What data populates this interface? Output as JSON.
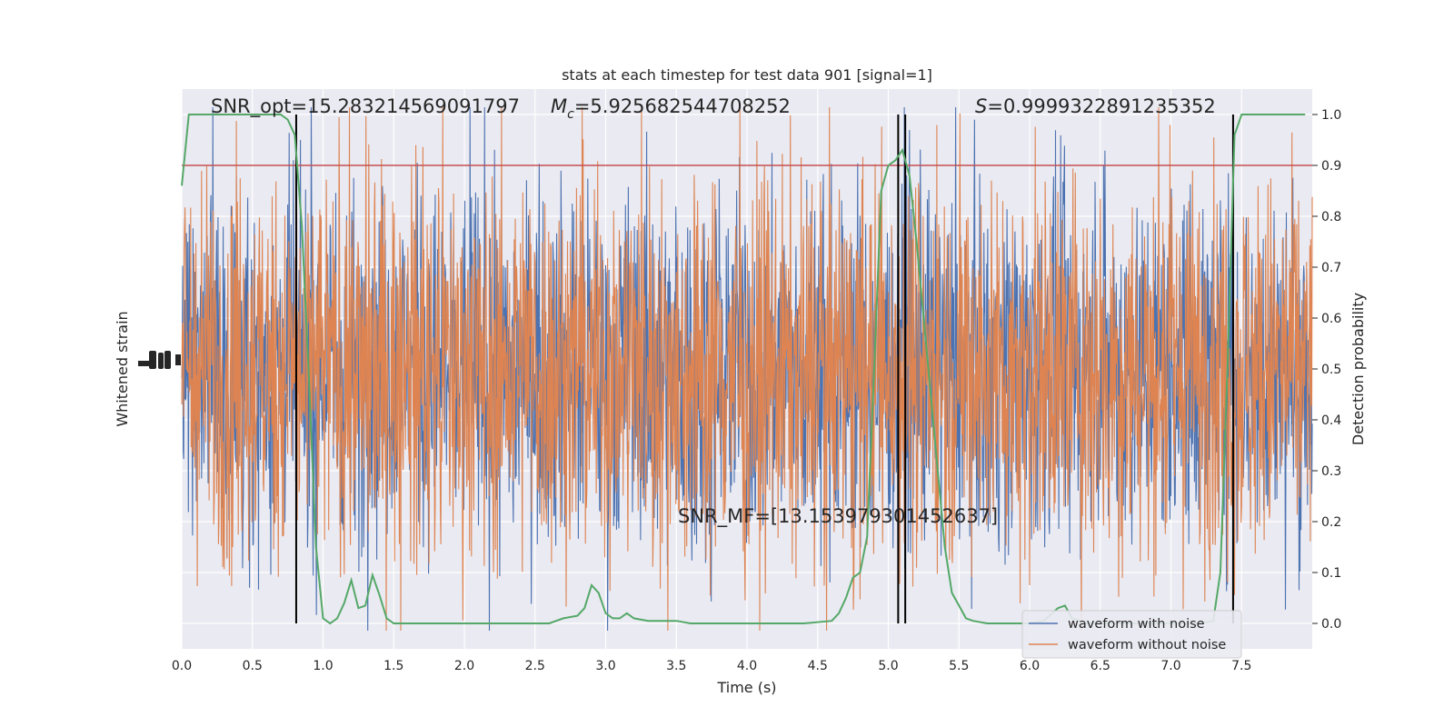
{
  "chart_data": {
    "type": "line",
    "title": "stats at each timestep for test data 901 [signal=1]",
    "xlabel": "Time (s)",
    "ylabel_left": "Whitened strain",
    "ylabel_right": "Detection probability",
    "xlim": [
      0,
      8
    ],
    "ylim_right": [
      -0.05,
      1.05
    ],
    "x_ticks": [
      "0.0",
      "0.5",
      "1.0",
      "1.5",
      "2.0",
      "2.5",
      "3.0",
      "3.5",
      "4.0",
      "4.5",
      "5.0",
      "5.5",
      "6.0",
      "6.5",
      "7.0",
      "7.5"
    ],
    "y_ticks_right": [
      "0.0",
      "0.1",
      "0.2",
      "0.3",
      "0.4",
      "0.5",
      "0.6",
      "0.7",
      "0.8",
      "0.9",
      "1.0"
    ],
    "grid": true,
    "legend_position": "lower-right",
    "annotations": {
      "snr_opt": "SNR_opt=15.283214569091797",
      "mc_symbol": "M",
      "mc_sub": "c",
      "mc_value": "=5.925682544708252",
      "s_symbol": "S",
      "s_value": "=0.9999322891235352",
      "snr_mf": "SNR_MF=[13.153979301452637]"
    },
    "threshold": 0.9,
    "vertical_lines_x": [
      0.81,
      5.07,
      5.12,
      7.44
    ],
    "series": [
      {
        "name": "waveform with noise",
        "color": "#4c72b0",
        "style": "dense noise trace"
      },
      {
        "name": "waveform without noise",
        "color": "#dd8452",
        "style": "dense noise trace"
      },
      {
        "color": "#55a868",
        "x": [
          0.0,
          0.05,
          0.1,
          0.2,
          0.3,
          0.4,
          0.5,
          0.6,
          0.7,
          0.75,
          0.8,
          0.85,
          0.9,
          0.95,
          1.0,
          1.05,
          1.1,
          1.15,
          1.2,
          1.25,
          1.3,
          1.35,
          1.4,
          1.45,
          1.5,
          1.55,
          1.6,
          1.7,
          1.8,
          2.0,
          2.2,
          2.4,
          2.6,
          2.7,
          2.8,
          2.85,
          2.9,
          2.95,
          3.0,
          3.05,
          3.1,
          3.15,
          3.2,
          3.3,
          3.4,
          3.5,
          3.6,
          3.8,
          4.0,
          4.2,
          4.4,
          4.6,
          4.65,
          4.7,
          4.75,
          4.8,
          4.85,
          4.9,
          4.95,
          5.0,
          5.05,
          5.1,
          5.15,
          5.2,
          5.25,
          5.3,
          5.35,
          5.4,
          5.45,
          5.5,
          5.55,
          5.6,
          5.7,
          5.8,
          6.0,
          6.1,
          6.2,
          6.25,
          6.3,
          6.4,
          6.6,
          6.8,
          7.0,
          7.2,
          7.3,
          7.35,
          7.4,
          7.45,
          7.5,
          7.55,
          7.6,
          7.7,
          7.8,
          7.9,
          7.95
        ],
        "values": [
          0.86,
          1.0,
          1.0,
          1.0,
          1.0,
          1.0,
          1.0,
          1.0,
          1.0,
          0.99,
          0.96,
          0.78,
          0.48,
          0.15,
          0.01,
          0.0,
          0.01,
          0.04,
          0.085,
          0.03,
          0.035,
          0.095,
          0.055,
          0.01,
          0.0,
          0.0,
          0.0,
          0.0,
          0.0,
          0.0,
          0.0,
          0.0,
          0.0,
          0.01,
          0.015,
          0.03,
          0.075,
          0.06,
          0.02,
          0.01,
          0.01,
          0.02,
          0.01,
          0.005,
          0.005,
          0.005,
          0.0,
          0.0,
          0.0,
          0.0,
          0.0,
          0.005,
          0.02,
          0.05,
          0.09,
          0.1,
          0.17,
          0.5,
          0.85,
          0.9,
          0.91,
          0.93,
          0.88,
          0.75,
          0.6,
          0.45,
          0.3,
          0.15,
          0.06,
          0.035,
          0.01,
          0.005,
          0.0,
          0.0,
          0.0,
          0.005,
          0.03,
          0.035,
          0.01,
          0.0,
          0.0,
          0.0,
          0.0,
          0.0,
          0.005,
          0.1,
          0.5,
          0.96,
          1.0,
          1.0,
          1.0,
          1.0,
          1.0,
          1.0,
          1.0
        ]
      }
    ]
  }
}
